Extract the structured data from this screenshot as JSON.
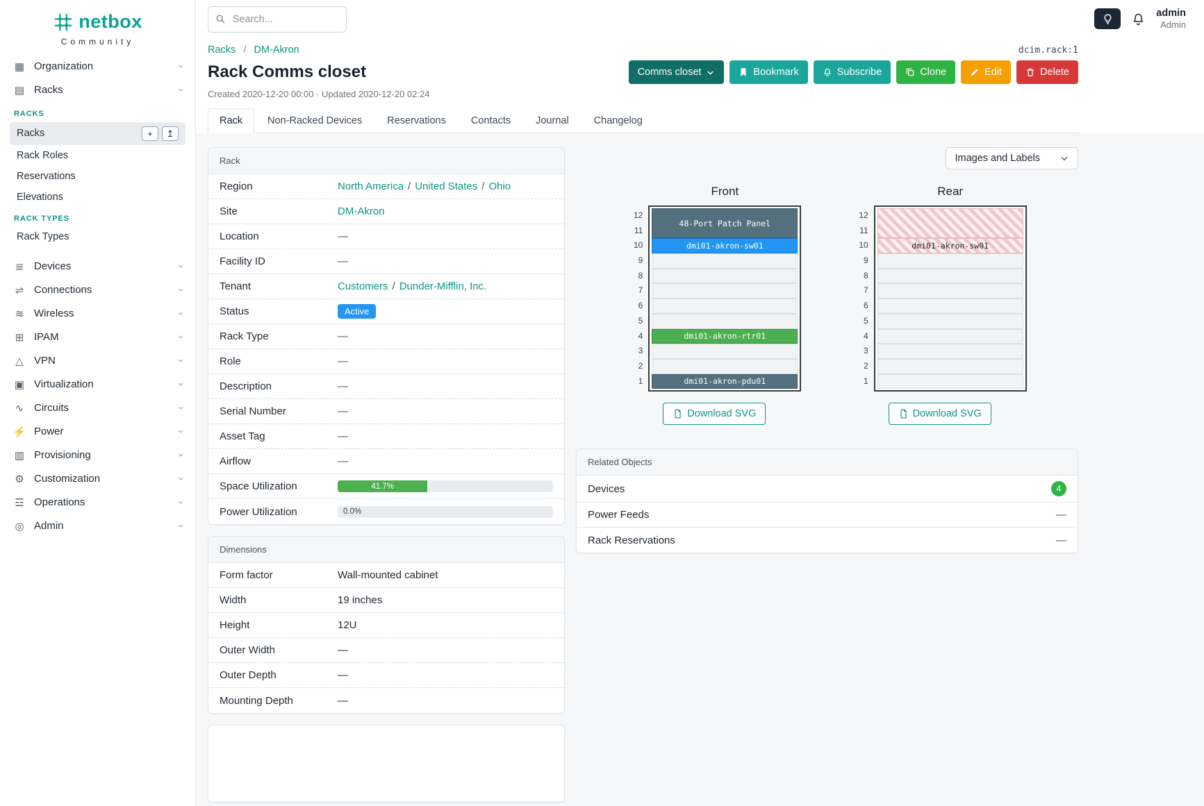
{
  "brand": {
    "name": "netbox",
    "subtitle": "Community"
  },
  "topbar": {
    "search_placeholder": "Search...",
    "user_name": "admin",
    "user_role": "Admin"
  },
  "icons": {
    "chevron": "›",
    "add": "+",
    "import": "↥"
  },
  "colors": {
    "brand_teal": "#0ba197",
    "link_teal": "#0d9488",
    "selector_button": "#0f6e66",
    "teal_button": "#1aa69b",
    "green_button": "#2fb344",
    "orange_button": "#f59f00",
    "red_button": "#d63939",
    "active_badge_blue": "#2196f3",
    "count_badge_green": "#2fb344",
    "progress_green": "#4caf50",
    "unit_panel": "#54707e",
    "unit_switch": "#2196f3",
    "unit_router": "#4caf50",
    "unit_pdu": "#54707e"
  },
  "sidebar": {
    "top_items": [
      {
        "label": "Organization",
        "icon": "organization-icon",
        "glyph": "▦"
      },
      {
        "label": "Racks",
        "icon": "racks-icon",
        "glyph": "▤"
      }
    ],
    "section1": {
      "title": "RACKS",
      "items": [
        {
          "label": "Racks",
          "active": true
        },
        {
          "label": "Rack Roles"
        },
        {
          "label": "Reservations"
        },
        {
          "label": "Elevations"
        }
      ]
    },
    "section2": {
      "title": "RACK TYPES",
      "items": [
        {
          "label": "Rack Types"
        }
      ]
    },
    "bottom_items": [
      {
        "label": "Devices",
        "icon": "devices-icon",
        "glyph": "≣"
      },
      {
        "label": "Connections",
        "icon": "connections-icon",
        "glyph": "⇌"
      },
      {
        "label": "Wireless",
        "icon": "wireless-icon",
        "glyph": "≋"
      },
      {
        "label": "IPAM",
        "icon": "ipam-icon",
        "glyph": "⊞"
      },
      {
        "label": "VPN",
        "icon": "vpn-icon",
        "glyph": "△"
      },
      {
        "label": "Virtualization",
        "icon": "virtualization-icon",
        "glyph": "▣"
      },
      {
        "label": "Circuits",
        "icon": "circuits-icon",
        "glyph": "∿"
      },
      {
        "label": "Power",
        "icon": "power-icon",
        "glyph": "⚡"
      },
      {
        "label": "Provisioning",
        "icon": "provisioning-icon",
        "glyph": "▥"
      },
      {
        "label": "Customization",
        "icon": "customization-icon",
        "glyph": "⚙"
      },
      {
        "label": "Operations",
        "icon": "operations-icon",
        "glyph": "☲"
      },
      {
        "label": "Admin",
        "icon": "admin-icon",
        "glyph": "◎"
      }
    ]
  },
  "breadcrumb": {
    "items": [
      "Racks",
      "DM-Akron"
    ],
    "sep": "/"
  },
  "object_id": "dcim.rack:1",
  "page": {
    "title": "Rack Comms closet",
    "meta": "Created 2020-12-20 00:00 · Updated 2020-12-20 02:24"
  },
  "actions": {
    "selector": "Comms closet",
    "bookmark": "Bookmark",
    "subscribe": "Subscribe",
    "clone": "Clone",
    "edit": "Edit",
    "delete": "Delete"
  },
  "tabs": [
    {
      "label": "Rack",
      "active": true
    },
    {
      "label": "Non-Racked Devices"
    },
    {
      "label": "Reservations"
    },
    {
      "label": "Contacts"
    },
    {
      "label": "Journal"
    },
    {
      "label": "Changelog"
    }
  ],
  "rack_panel": {
    "header": "Rack",
    "region": {
      "label": "Region",
      "links": [
        "North America",
        "United States",
        "Ohio"
      ],
      "sep": "/"
    },
    "site": {
      "label": "Site",
      "link": "DM-Akron"
    },
    "location": {
      "label": "Location",
      "value": "—"
    },
    "facility_id": {
      "label": "Facility ID",
      "value": "—"
    },
    "tenant": {
      "label": "Tenant",
      "links": [
        "Customers",
        "Dunder-Mifflin, Inc."
      ],
      "sep": "/"
    },
    "status": {
      "label": "Status",
      "badge": "Active"
    },
    "rack_type": {
      "label": "Rack Type",
      "value": "—"
    },
    "role": {
      "label": "Role",
      "value": "—"
    },
    "description": {
      "label": "Description",
      "value": "—"
    },
    "serial_number": {
      "label": "Serial Number",
      "value": "—"
    },
    "asset_tag": {
      "label": "Asset Tag",
      "value": "—"
    },
    "airflow": {
      "label": "Airflow",
      "value": "—"
    },
    "space_utilization": {
      "label": "Space Utilization",
      "percent": 41.7,
      "text": "41.7%"
    },
    "power_utilization": {
      "label": "Power Utilization",
      "percent": 0,
      "text": "0.0%"
    }
  },
  "dimensions": {
    "header": "Dimensions",
    "rows": [
      {
        "label": "Form factor",
        "value": "Wall-mounted cabinet"
      },
      {
        "label": "Width",
        "value": "19 inches"
      },
      {
        "label": "Height",
        "value": "12U"
      },
      {
        "label": "Outer Width",
        "value": "—"
      },
      {
        "label": "Outer Depth",
        "value": "—"
      },
      {
        "label": "Mounting Depth",
        "value": "—"
      }
    ]
  },
  "elevation": {
    "view_label": "Images and Labels",
    "download_label": "Download SVG",
    "unit_numbers": [
      "12",
      "11",
      "10",
      "9",
      "8",
      "7",
      "6",
      "5",
      "4",
      "3",
      "2",
      "1"
    ],
    "front": {
      "title": "Front",
      "units": [
        {
          "label": "48-Port Patch Panel",
          "type": "panel",
          "span": 2
        },
        {
          "label": "dmi01-akron-sw01",
          "type": "switch"
        },
        {
          "type": "empty"
        },
        {
          "type": "empty"
        },
        {
          "type": "empty"
        },
        {
          "type": "empty"
        },
        {
          "type": "empty"
        },
        {
          "label": "dmi01-akron-rtr01",
          "type": "router"
        },
        {
          "type": "empty"
        },
        {
          "type": "empty"
        },
        {
          "label": "dmi01-akron-pdu01",
          "type": "pdu"
        }
      ]
    },
    "rear": {
      "title": "Rear",
      "units": [
        {
          "type": "striped",
          "span": 2
        },
        {
          "label": "dmi01-akron-sw01",
          "type": "striped-device"
        },
        {
          "type": "empty"
        },
        {
          "type": "empty"
        },
        {
          "type": "empty"
        },
        {
          "type": "empty"
        },
        {
          "type": "empty"
        },
        {
          "type": "empty"
        },
        {
          "type": "empty"
        },
        {
          "type": "empty"
        },
        {
          "type": "empty"
        }
      ]
    }
  },
  "related": {
    "header": "Related Objects",
    "rows": [
      {
        "label": "Devices",
        "count": "4"
      },
      {
        "label": "Power Feeds",
        "value": "—"
      },
      {
        "label": "Rack Reservations",
        "value": "—"
      }
    ]
  }
}
